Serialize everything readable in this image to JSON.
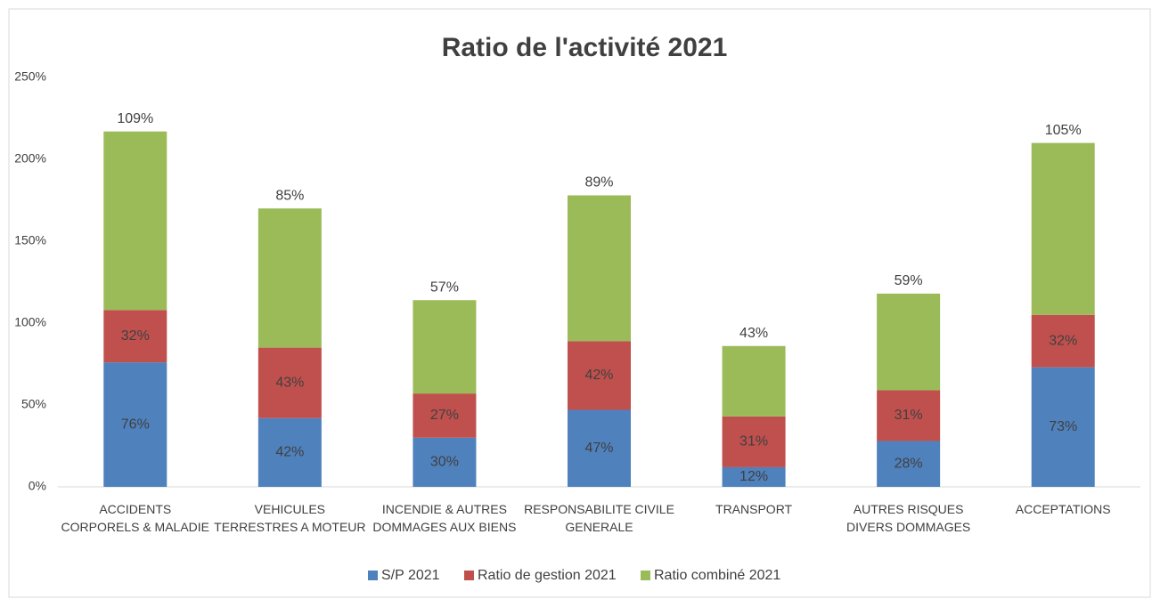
{
  "chart_data": {
    "type": "stacked_bar",
    "title": "Ratio de l'activité 2021",
    "categories": [
      "ACCIDENTS CORPORELS & MALADIE",
      "VEHICULES TERRESTRES A MOTEUR",
      "INCENDIE & AUTRES DOMMAGES AUX BIENS",
      "RESPONSABILITE CIVILE GENERALE",
      "TRANSPORT",
      "AUTRES RISQUES DIVERS DOMMAGES",
      "ACCEPTATIONS"
    ],
    "series": [
      {
        "name": "S/P 2021",
        "color": "#4f81bd",
        "values": [
          76,
          42,
          30,
          47,
          12,
          28,
          73
        ],
        "value_labels": [
          "76%",
          "42%",
          "30%",
          "47%",
          "12%",
          "28%",
          "73%"
        ]
      },
      {
        "name": "Ratio de gestion 2021",
        "color": "#c0504d",
        "values": [
          32,
          43,
          27,
          42,
          31,
          31,
          32
        ],
        "value_labels": [
          "32%",
          "43%",
          "27%",
          "42%",
          "31%",
          "31%",
          "32%"
        ]
      },
      {
        "name": "Ratio combiné 2021",
        "color": "#9bbb59",
        "values": [
          109,
          85,
          57,
          89,
          43,
          59,
          105
        ],
        "value_labels": [
          "109%",
          "85%",
          "57%",
          "89%",
          "43%",
          "59%",
          "105%"
        ]
      }
    ],
    "ylim": [
      0,
      250
    ],
    "yticks": [
      {
        "value": 0,
        "label": "0%"
      },
      {
        "value": 50,
        "label": "50%"
      },
      {
        "value": 100,
        "label": "100%"
      },
      {
        "value": 150,
        "label": "150%"
      },
      {
        "value": 200,
        "label": "200%"
      },
      {
        "value": 250,
        "label": "250%"
      }
    ],
    "grid": false,
    "legend": "bottom"
  }
}
